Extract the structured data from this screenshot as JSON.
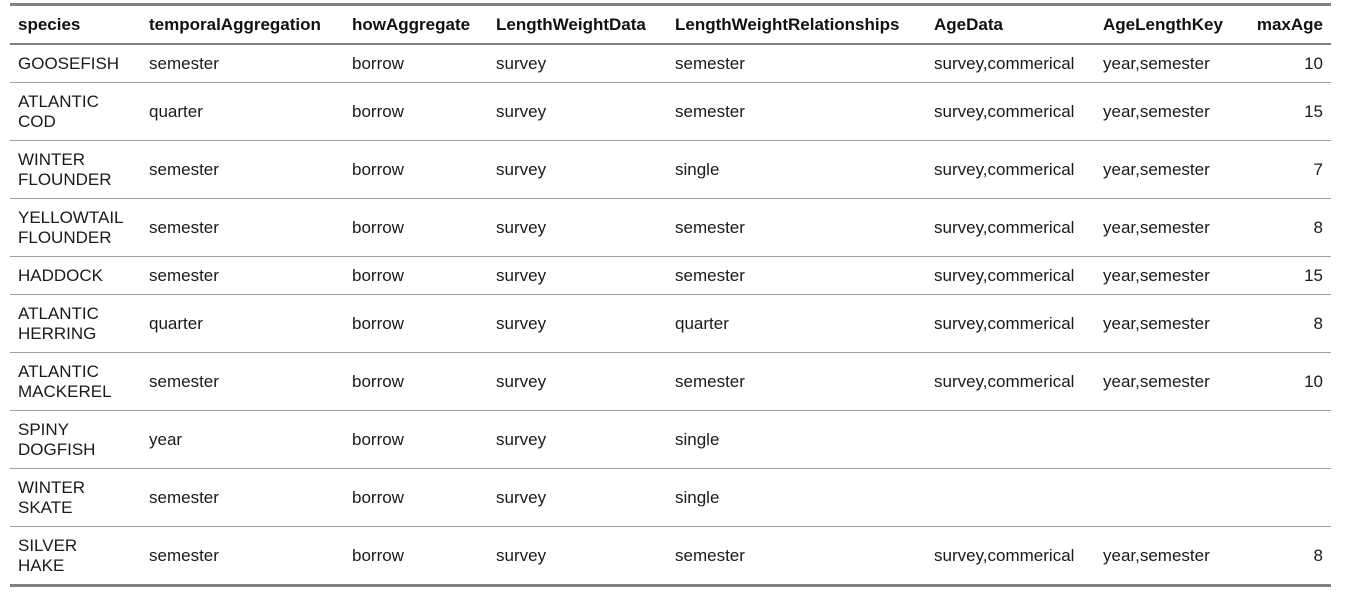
{
  "table": {
    "columns": [
      "species",
      "temporalAggregation",
      "howAggregate",
      "LengthWeightData",
      "LengthWeightRelationships",
      "AgeData",
      "AgeLengthKey",
      "maxAge"
    ],
    "rows": [
      [
        "GOOSEFISH",
        "semester",
        "borrow",
        "survey",
        "semester",
        "survey,commerical",
        "year,semester",
        "10"
      ],
      [
        "ATLANTIC COD",
        "quarter",
        "borrow",
        "survey",
        "semester",
        "survey,commerical",
        "year,semester",
        "15"
      ],
      [
        "WINTER FLOUNDER",
        "semester",
        "borrow",
        "survey",
        "single",
        "survey,commerical",
        "year,semester",
        "7"
      ],
      [
        "YELLOWTAIL FLOUNDER",
        "semester",
        "borrow",
        "survey",
        "semester",
        "survey,commerical",
        "year,semester",
        "8"
      ],
      [
        "HADDOCK",
        "semester",
        "borrow",
        "survey",
        "semester",
        "survey,commerical",
        "year,semester",
        "15"
      ],
      [
        "ATLANTIC HERRING",
        "quarter",
        "borrow",
        "survey",
        "quarter",
        "survey,commerical",
        "year,semester",
        "8"
      ],
      [
        "ATLANTIC MACKEREL",
        "semester",
        "borrow",
        "survey",
        "semester",
        "survey,commerical",
        "year,semester",
        "10"
      ],
      [
        "SPINY DOGFISH",
        "year",
        "borrow",
        "survey",
        "single",
        "",
        "",
        ""
      ],
      [
        "WINTER SKATE",
        "semester",
        "borrow",
        "survey",
        "single",
        "",
        "",
        ""
      ],
      [
        "SILVER HAKE",
        "semester",
        "borrow",
        "survey",
        "semester",
        "survey,commerical",
        "year,semester",
        "8"
      ]
    ]
  }
}
